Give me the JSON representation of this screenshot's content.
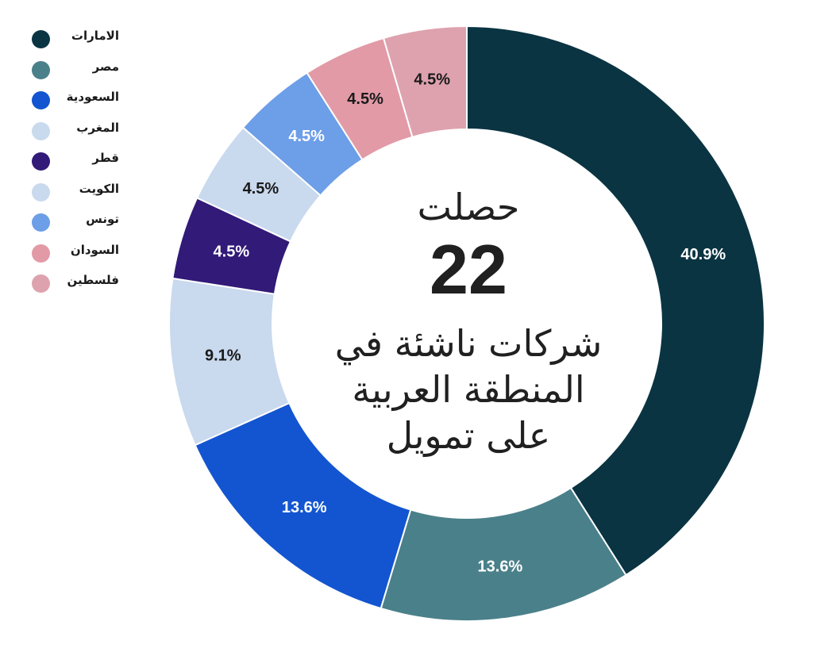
{
  "chart_data": {
    "type": "pie",
    "variant": "donut",
    "title": "",
    "categories": [
      "الامارات",
      "مصر",
      "السعودية",
      "المغرب",
      "قطر",
      "الكويت",
      "تونس",
      "السودان",
      "فلسطين"
    ],
    "values": [
      40.9,
      13.6,
      13.6,
      9.1,
      4.5,
      4.5,
      4.5,
      4.5,
      4.5
    ],
    "labels": [
      "40.9%",
      "13.6%",
      "13.6%",
      "9.1%",
      "4.5%",
      "4.5%",
      "4.5%",
      "4.5%",
      "4.5%"
    ],
    "colors": [
      "#0a3442",
      "#4a808a",
      "#1355d0",
      "#c9d9ee",
      "#311a78",
      "#c9d9ee",
      "#6d9ee8",
      "#e29aa7",
      "#dea2ae"
    ],
    "label_colors": [
      "#ffffff",
      "#ffffff",
      "#ffffff",
      "#1a1a1a",
      "#ffffff",
      "#1a1a1a",
      "#ffffff",
      "#1a1a1a",
      "#1a1a1a"
    ],
    "legend_position": "top-left",
    "center": {
      "line1": "حصلت",
      "number": "22",
      "line2": "شركات ناشئة في المنطقة العربية على تمويل"
    }
  }
}
